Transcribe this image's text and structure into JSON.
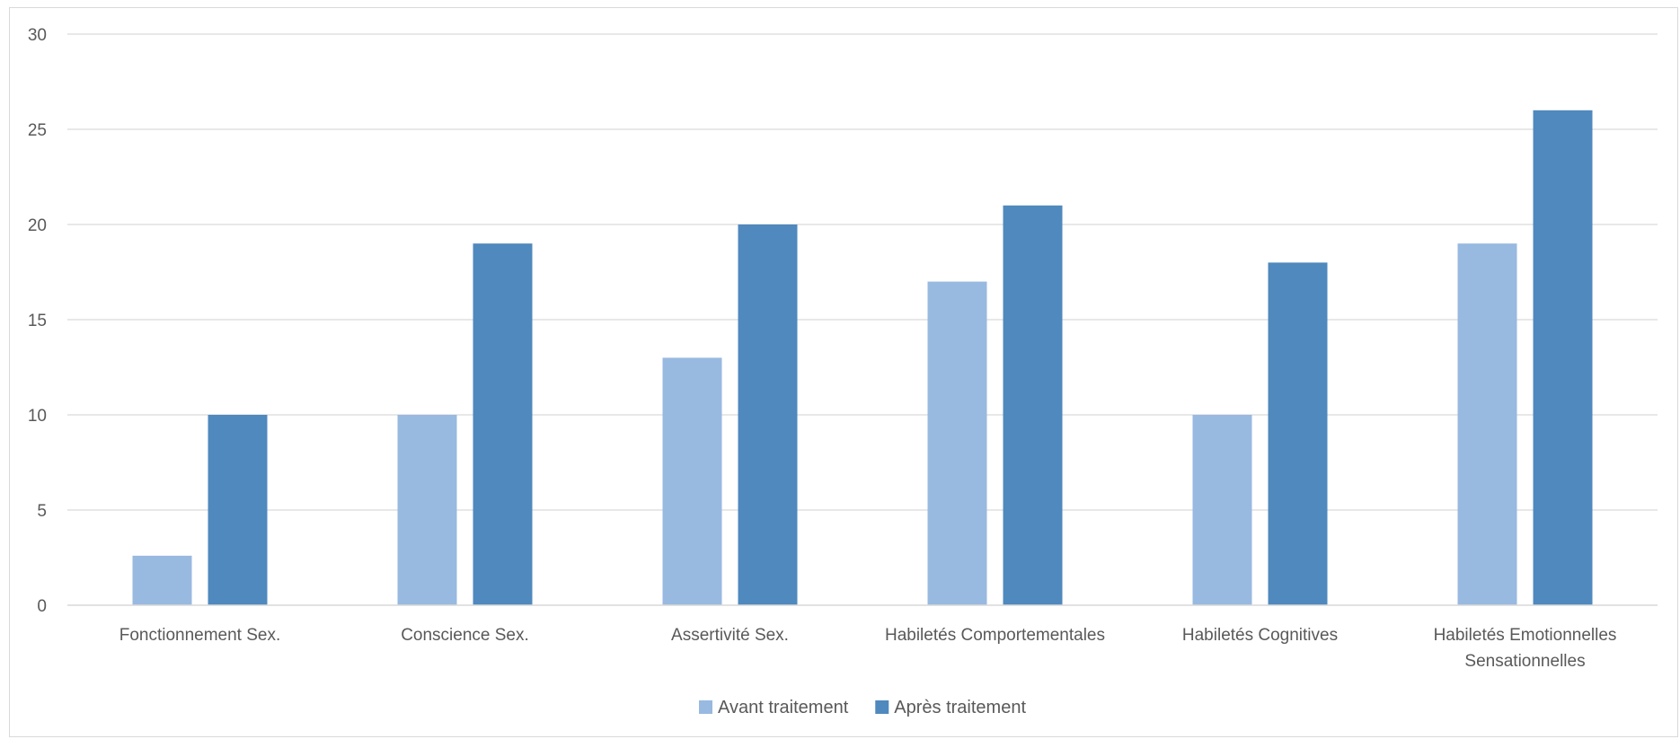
{
  "chart_data": {
    "type": "bar",
    "title": "",
    "xlabel": "",
    "ylabel": "",
    "ylim": [
      0,
      30
    ],
    "yticks": [
      0,
      5,
      10,
      15,
      20,
      25,
      30
    ],
    "grid": true,
    "legend_position": "bottom",
    "categories": [
      [
        "Fonctionnement Sex."
      ],
      [
        "Conscience Sex."
      ],
      [
        "Assertivité Sex."
      ],
      [
        "Habiletés Comportementales"
      ],
      [
        "Habiletés Cognitives"
      ],
      [
        "Habiletés Emotionnelles",
        "Sensationnelles"
      ]
    ],
    "series": [
      {
        "name": "Avant traitement",
        "color": "#98b9e0",
        "values": [
          2.6,
          10,
          13,
          17,
          10,
          19
        ]
      },
      {
        "name": "Après traitement",
        "color": "#4f89bd",
        "values": [
          10,
          19,
          20,
          21,
          18,
          26
        ]
      }
    ],
    "colors": {
      "gridline": "#d9d9d9",
      "axis_line": "#d9d9d9",
      "text": "#595959",
      "frame": "#d9d9d9"
    }
  }
}
